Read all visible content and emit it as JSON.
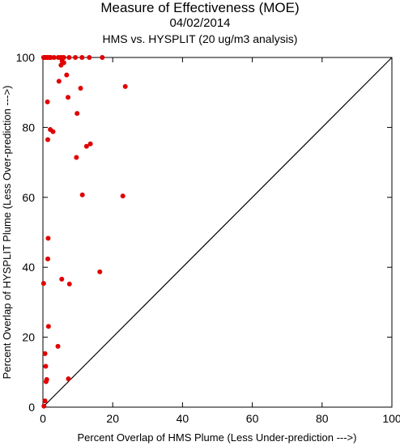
{
  "chart_data": {
    "type": "scatter",
    "title": "Measure of Effectiveness (MOE)",
    "subtitle": "04/02/2014",
    "subtitle2": "HMS vs. HYSPLIT  (20 ug/m3 analysis)",
    "xlabel": "Percent Overlap of HMS Plume (Less Under-prediction --->)",
    "ylabel": "Percent Overlap of HYSPLIT Plume (Less Over-prediction --->)",
    "xlim": [
      0,
      100
    ],
    "ylim": [
      0,
      100
    ],
    "xticks": [
      "0",
      "20",
      "40",
      "60",
      "80",
      "100"
    ],
    "yticks": [
      "0",
      "20",
      "40",
      "60",
      "80",
      "100"
    ],
    "grid": false,
    "reference_line": "y = x",
    "point_color": "#e00000",
    "points": [
      {
        "x": 0.2,
        "y": 100
      },
      {
        "x": 0.4,
        "y": 100
      },
      {
        "x": 0.6,
        "y": 100
      },
      {
        "x": 0.9,
        "y": 100
      },
      {
        "x": 1.2,
        "y": 100
      },
      {
        "x": 1.5,
        "y": 100
      },
      {
        "x": 1.9,
        "y": 100
      },
      {
        "x": 2.3,
        "y": 100
      },
      {
        "x": 3.2,
        "y": 100
      },
      {
        "x": 4.4,
        "y": 100
      },
      {
        "x": 5.0,
        "y": 100
      },
      {
        "x": 5.5,
        "y": 100
      },
      {
        "x": 6.0,
        "y": 100
      },
      {
        "x": 7.5,
        "y": 100
      },
      {
        "x": 9.3,
        "y": 100
      },
      {
        "x": 11.2,
        "y": 100
      },
      {
        "x": 13.3,
        "y": 100
      },
      {
        "x": 17.0,
        "y": 100
      },
      {
        "x": 5.5,
        "y": 99.0
      },
      {
        "x": 6.0,
        "y": 98.5
      },
      {
        "x": 5.2,
        "y": 97.8
      },
      {
        "x": 6.8,
        "y": 95.0
      },
      {
        "x": 4.6,
        "y": 93.2
      },
      {
        "x": 23.6,
        "y": 91.7
      },
      {
        "x": 10.8,
        "y": 91.2
      },
      {
        "x": 7.2,
        "y": 88.6
      },
      {
        "x": 1.3,
        "y": 87.3
      },
      {
        "x": 9.8,
        "y": 84.0
      },
      {
        "x": 2.1,
        "y": 79.4
      },
      {
        "x": 2.9,
        "y": 78.8
      },
      {
        "x": 1.4,
        "y": 76.5
      },
      {
        "x": 13.6,
        "y": 75.3
      },
      {
        "x": 12.5,
        "y": 74.6
      },
      {
        "x": 9.6,
        "y": 71.4
      },
      {
        "x": 11.3,
        "y": 60.7
      },
      {
        "x": 22.9,
        "y": 60.4
      },
      {
        "x": 1.5,
        "y": 48.3
      },
      {
        "x": 1.4,
        "y": 42.4
      },
      {
        "x": 16.3,
        "y": 38.7
      },
      {
        "x": 5.4,
        "y": 36.6
      },
      {
        "x": 0.2,
        "y": 35.4
      },
      {
        "x": 7.6,
        "y": 35.2
      },
      {
        "x": 1.6,
        "y": 23.1
      },
      {
        "x": 4.3,
        "y": 17.4
      },
      {
        "x": 0.6,
        "y": 15.3
      },
      {
        "x": 0.8,
        "y": 11.7
      },
      {
        "x": 1.1,
        "y": 7.9
      },
      {
        "x": 0.9,
        "y": 7.3
      },
      {
        "x": 7.3,
        "y": 8.1
      },
      {
        "x": 0.6,
        "y": 1.8
      },
      {
        "x": 0.3,
        "y": 0.3
      }
    ]
  }
}
